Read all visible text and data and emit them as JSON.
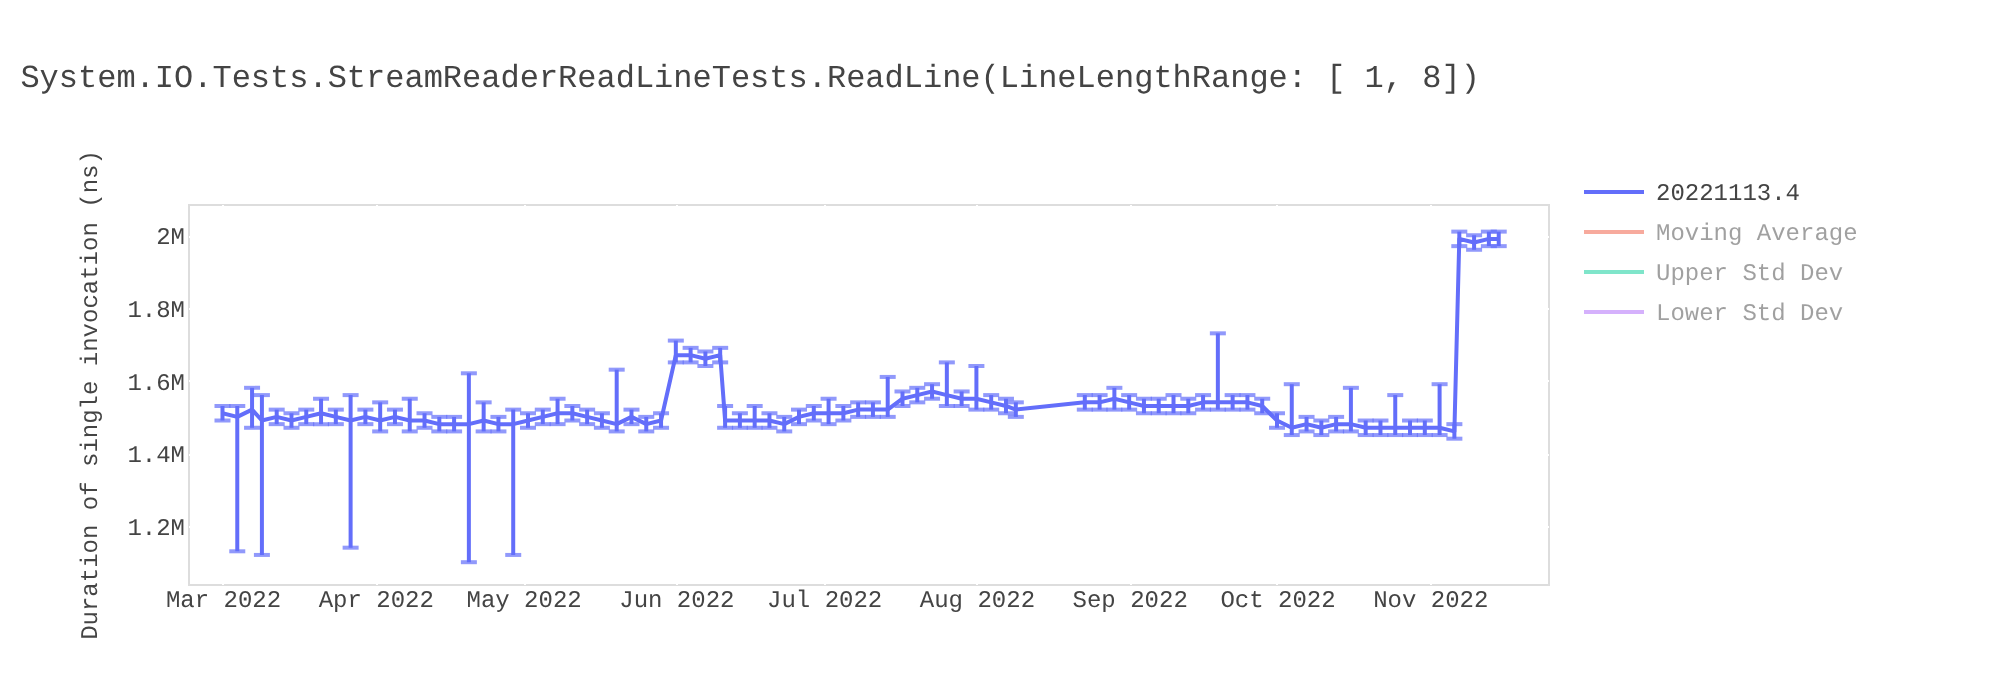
{
  "chart_data": {
    "type": "line",
    "title": "System.IO.Tests.StreamReaderReadLineTests.ReadLine(LineLengthRange: [   1,    8])",
    "ylabel": "Duration of single invocation (ns)",
    "x": [
      "2022-03-01",
      "2022-03-04",
      "2022-03-07",
      "2022-03-09",
      "2022-03-12",
      "2022-03-15",
      "2022-03-18",
      "2022-03-21",
      "2022-03-24",
      "2022-03-27",
      "2022-03-30",
      "2022-04-02",
      "2022-04-05",
      "2022-04-08",
      "2022-04-11",
      "2022-04-14",
      "2022-04-17",
      "2022-04-20",
      "2022-04-23",
      "2022-04-26",
      "2022-04-29",
      "2022-05-02",
      "2022-05-05",
      "2022-05-08",
      "2022-05-11",
      "2022-05-14",
      "2022-05-17",
      "2022-05-20",
      "2022-05-23",
      "2022-05-26",
      "2022-05-29",
      "2022-06-01",
      "2022-06-04",
      "2022-06-07",
      "2022-06-10",
      "2022-06-11",
      "2022-06-14",
      "2022-06-17",
      "2022-06-20",
      "2022-06-23",
      "2022-06-26",
      "2022-06-29",
      "2022-07-02",
      "2022-07-05",
      "2022-07-08",
      "2022-07-11",
      "2022-07-14",
      "2022-07-17",
      "2022-07-20",
      "2022-07-23",
      "2022-07-26",
      "2022-07-29",
      "2022-08-01",
      "2022-08-04",
      "2022-08-07",
      "2022-08-09",
      "2022-08-23",
      "2022-08-26",
      "2022-08-29",
      "2022-09-01",
      "2022-09-04",
      "2022-09-07",
      "2022-09-10",
      "2022-09-13",
      "2022-09-16",
      "2022-09-19",
      "2022-09-22",
      "2022-09-25",
      "2022-09-28",
      "2022-10-01",
      "2022-10-04",
      "2022-10-07",
      "2022-10-10",
      "2022-10-13",
      "2022-10-16",
      "2022-10-19",
      "2022-10-22",
      "2022-10-25",
      "2022-10-28",
      "2022-10-31",
      "2022-11-03",
      "2022-11-06",
      "2022-11-07",
      "2022-11-10",
      "2022-11-13",
      "2022-11-15"
    ],
    "series": [
      {
        "name": "20221113.4",
        "color": "#636efa",
        "values": [
          1510000,
          1500000,
          1520000,
          1490000,
          1500000,
          1490000,
          1500000,
          1510000,
          1500000,
          1490000,
          1500000,
          1490000,
          1500000,
          1490000,
          1490000,
          1480000,
          1480000,
          1480000,
          1490000,
          1480000,
          1480000,
          1490000,
          1500000,
          1510000,
          1510000,
          1500000,
          1490000,
          1480000,
          1500000,
          1480000,
          1490000,
          1670000,
          1670000,
          1660000,
          1670000,
          1490000,
          1490000,
          1490000,
          1490000,
          1480000,
          1500000,
          1510000,
          1510000,
          1510000,
          1520000,
          1520000,
          1520000,
          1550000,
          1560000,
          1570000,
          1560000,
          1550000,
          1550000,
          1540000,
          1530000,
          1520000,
          1540000,
          1540000,
          1550000,
          1540000,
          1530000,
          1530000,
          1530000,
          1530000,
          1540000,
          1540000,
          1540000,
          1540000,
          1530000,
          1490000,
          1470000,
          1480000,
          1470000,
          1480000,
          1480000,
          1470000,
          1470000,
          1470000,
          1470000,
          1470000,
          1470000,
          1460000,
          1990000,
          1980000,
          1990000,
          1990000
        ],
        "errors": [
          20000,
          [
            1130000,
            1530000
          ],
          [
            1470000,
            1580000
          ],
          [
            1120000,
            1560000
          ],
          20000,
          20000,
          20000,
          [
            1480000,
            1550000
          ],
          20000,
          [
            1140000,
            1560000
          ],
          20000,
          [
            1460000,
            1540000
          ],
          20000,
          [
            1460000,
            1550000
          ],
          20000,
          20000,
          20000,
          [
            1100000,
            1620000
          ],
          [
            1460000,
            1540000
          ],
          20000,
          [
            1120000,
            1520000
          ],
          20000,
          20000,
          [
            1480000,
            1550000
          ],
          20000,
          20000,
          20000,
          [
            1460000,
            1630000
          ],
          20000,
          20000,
          20000,
          [
            1650000,
            1710000
          ],
          20000,
          20000,
          20000,
          [
            1470000,
            1530000
          ],
          20000,
          [
            1470000,
            1530000
          ],
          20000,
          20000,
          20000,
          20000,
          [
            1480000,
            1550000
          ],
          20000,
          20000,
          20000,
          [
            1500000,
            1610000
          ],
          20000,
          20000,
          20000,
          [
            1530000,
            1650000
          ],
          20000,
          [
            1520000,
            1640000
          ],
          20000,
          20000,
          20000,
          20000,
          20000,
          [
            1520000,
            1580000
          ],
          20000,
          20000,
          20000,
          [
            1510000,
            1560000
          ],
          20000,
          20000,
          [
            1520000,
            1730000
          ],
          20000,
          20000,
          20000,
          20000,
          [
            1450000,
            1590000
          ],
          20000,
          20000,
          20000,
          [
            1460000,
            1580000
          ],
          20000,
          20000,
          [
            1450000,
            1560000
          ],
          20000,
          20000,
          [
            1450000,
            1590000
          ],
          20000,
          20000,
          20000,
          20000,
          20000
        ]
      },
      {
        "name": "Moving Average",
        "color": "#ef553b",
        "values": [
          null,
          null,
          null,
          null,
          null,
          null,
          null,
          null,
          null,
          null,
          null,
          null,
          null,
          null,
          null,
          null,
          null,
          null,
          null,
          null,
          null,
          null,
          null,
          null,
          null,
          null,
          null,
          null,
          null,
          null,
          null,
          null,
          null,
          null,
          null,
          null,
          null,
          null,
          null,
          null,
          null,
          null,
          null,
          null,
          null,
          null,
          null,
          null,
          null,
          null,
          null,
          null,
          null,
          null,
          null,
          null,
          null,
          null,
          null,
          null,
          null,
          null,
          null,
          null,
          null,
          null,
          null,
          null,
          null,
          null,
          null,
          null,
          null,
          null,
          null,
          null,
          null,
          null,
          null,
          null,
          null,
          null,
          null,
          null,
          null,
          null
        ]
      },
      {
        "name": "Upper Std Dev",
        "color": "#00cc96",
        "values": [
          null,
          null,
          null,
          null,
          null,
          null,
          null,
          null,
          null,
          null,
          null,
          null,
          null,
          null,
          null,
          null,
          null,
          null,
          null,
          null,
          null,
          null,
          null,
          null,
          null,
          null,
          null,
          null,
          null,
          null,
          null,
          null,
          null,
          null,
          null,
          null,
          null,
          null,
          null,
          null,
          null,
          null,
          null,
          null,
          null,
          null,
          null,
          null,
          null,
          null,
          null,
          null,
          null,
          null,
          null,
          null,
          null,
          null,
          null,
          null,
          null,
          null,
          null,
          null,
          null,
          null,
          null,
          null,
          null,
          null,
          null,
          null,
          null,
          null,
          null,
          null,
          null,
          null,
          null,
          null,
          null,
          null,
          null,
          null,
          null,
          null
        ]
      },
      {
        "name": "Lower Std Dev",
        "color": "#ab63fa",
        "values": [
          null,
          null,
          null,
          null,
          null,
          null,
          null,
          null,
          null,
          null,
          null,
          null,
          null,
          null,
          null,
          null,
          null,
          null,
          null,
          null,
          null,
          null,
          null,
          null,
          null,
          null,
          null,
          null,
          null,
          null,
          null,
          null,
          null,
          null,
          null,
          null,
          null,
          null,
          null,
          null,
          null,
          null,
          null,
          null,
          null,
          null,
          null,
          null,
          null,
          null,
          null,
          null,
          null,
          null,
          null,
          null,
          null,
          null,
          null,
          null,
          null,
          null,
          null,
          null,
          null,
          null,
          null,
          null,
          null,
          null,
          null,
          null,
          null,
          null,
          null,
          null,
          null,
          null,
          null,
          null,
          null,
          null,
          null,
          null,
          null,
          null
        ]
      }
    ],
    "xlim": [
      "2022-02-22",
      "2022-11-25"
    ],
    "xticks": [
      {
        "value": "2022-03-01",
        "label": "Mar 2022"
      },
      {
        "value": "2022-04-01",
        "label": "Apr 2022"
      },
      {
        "value": "2022-05-01",
        "label": "May 2022"
      },
      {
        "value": "2022-06-01",
        "label": "Jun 2022"
      },
      {
        "value": "2022-07-01",
        "label": "Jul 2022"
      },
      {
        "value": "2022-08-01",
        "label": "Aug 2022"
      },
      {
        "value": "2022-09-01",
        "label": "Sep 2022"
      },
      {
        "value": "2022-10-01",
        "label": "Oct 2022"
      },
      {
        "value": "2022-11-01",
        "label": "Nov 2022"
      }
    ],
    "ylim": [
      1040000,
      2086000
    ],
    "yticks": [
      {
        "value": 1200000,
        "label": "1.2M"
      },
      {
        "value": 1400000,
        "label": "1.4M"
      },
      {
        "value": 1600000,
        "label": "1.6M"
      },
      {
        "value": 1800000,
        "label": "1.8M"
      },
      {
        "value": 2000000,
        "label": "2M"
      }
    ],
    "grid": true,
    "legend": "top right",
    "marker": "none",
    "line_style": "solid"
  }
}
